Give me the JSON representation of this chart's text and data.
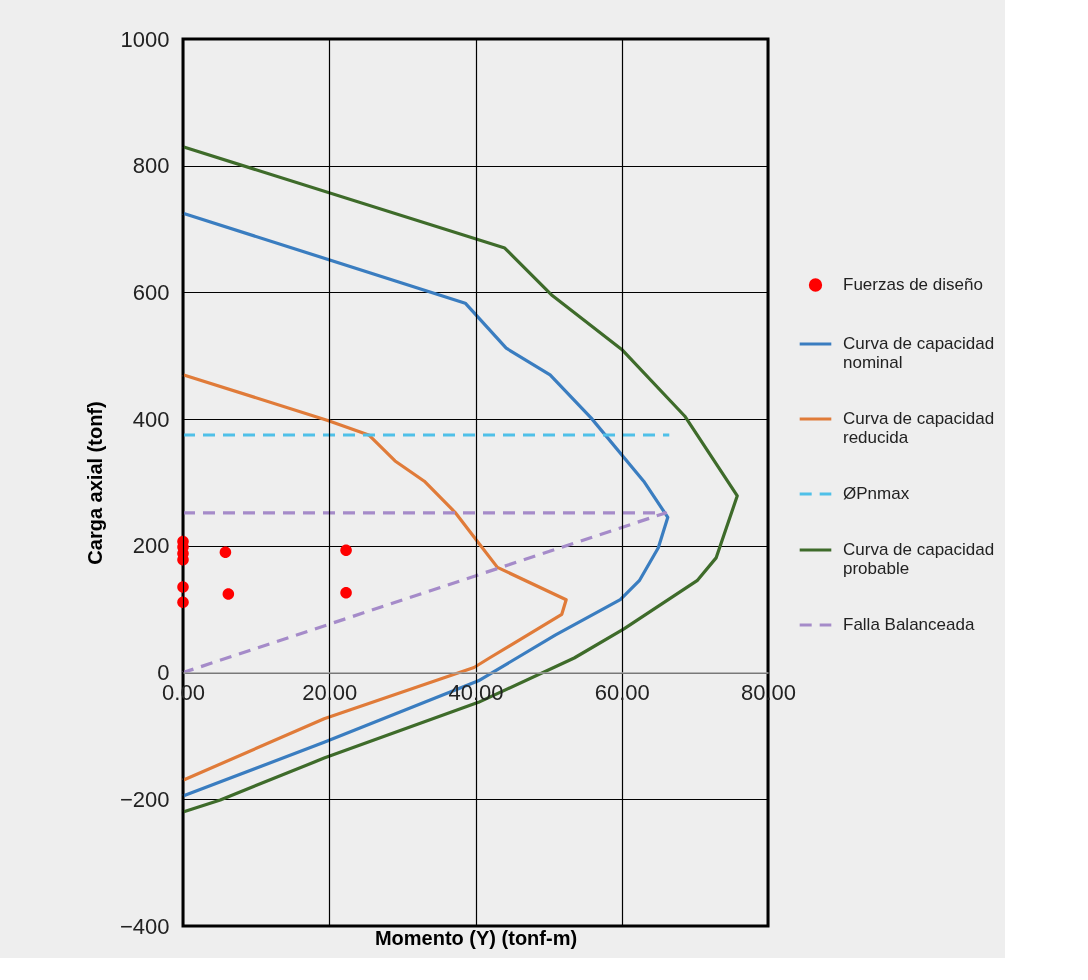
{
  "chart_data": {
    "type": "line",
    "xlabel": "Momento (Y) (tonf-m)",
    "ylabel": "Carga axial (tonf)",
    "xlim": [
      0,
      80
    ],
    "ylim": [
      -400,
      1000
    ],
    "xticks": [
      {
        "value": 0,
        "label": "0.00"
      },
      {
        "value": 20,
        "label": "20.00"
      },
      {
        "value": 40,
        "label": "40.00"
      },
      {
        "value": 60,
        "label": "60.00"
      },
      {
        "value": 80,
        "label": "80.00"
      }
    ],
    "yticks": [
      -400,
      -200,
      0,
      200,
      400,
      600,
      800,
      {
        "value": 1000,
        "label": "1000"
      }
    ],
    "grid": true,
    "legend": "right",
    "series": [
      {
        "name": "Fuerzas de diseño",
        "type": "scatter",
        "marker": "circle",
        "color": "#ff0000",
        "x": [
          0,
          0,
          0,
          0,
          0,
          0,
          5.8,
          6.2,
          22.3,
          22.3
        ],
        "values": [
          207,
          198,
          188,
          178,
          135,
          111,
          190,
          124,
          193,
          126
        ]
      },
      {
        "name": "Curva de capacidad nominal",
        "line_style": "solid",
        "color": "#3a7dc0",
        "x": [
          0,
          38.6,
          44.2,
          50.2,
          55.8,
          63,
          66.3,
          65,
          62.4,
          59.8,
          50.9,
          40.4,
          19.3,
          0
        ],
        "values": [
          725,
          583,
          512,
          470,
          402,
          302,
          245,
          197,
          145,
          115,
          59,
          -13,
          -110,
          -195
        ]
      },
      {
        "name": "Curva de capacidad reducida",
        "line_style": "solid",
        "color": "#e07b39",
        "x": [
          0,
          19.8,
          25.4,
          29,
          33,
          37.2,
          40.4,
          43,
          52.4,
          51.8,
          41.9,
          39.8,
          19.3,
          0
        ],
        "values": [
          470,
          398,
          375,
          334,
          302,
          253,
          205,
          166,
          115,
          92,
          23,
          8,
          -73,
          -170
        ]
      },
      {
        "name": "ØPnmax",
        "line_style": "dashed",
        "color": "#4fc0e8",
        "x": [
          0,
          66.5
        ],
        "values": [
          375,
          375
        ]
      },
      {
        "name": "Curva de capacidad probable",
        "line_style": "solid",
        "color": "#3e6b2a",
        "x": [
          0,
          44,
          50.5,
          60,
          68.6,
          75.8,
          72.9,
          70.3,
          60.3,
          53.5,
          40.4,
          19.3,
          5.1,
          0
        ],
        "values": [
          830,
          670,
          595,
          510,
          405,
          279,
          181,
          145,
          69,
          23,
          -47,
          -135,
          -201,
          -220
        ]
      },
      {
        "name": "Falla Balanceada",
        "line_style": "dashed",
        "color": "#a58bc9",
        "x": [
          0,
          66,
          0
        ],
        "values": [
          252,
          252,
          0
        ]
      }
    ]
  }
}
